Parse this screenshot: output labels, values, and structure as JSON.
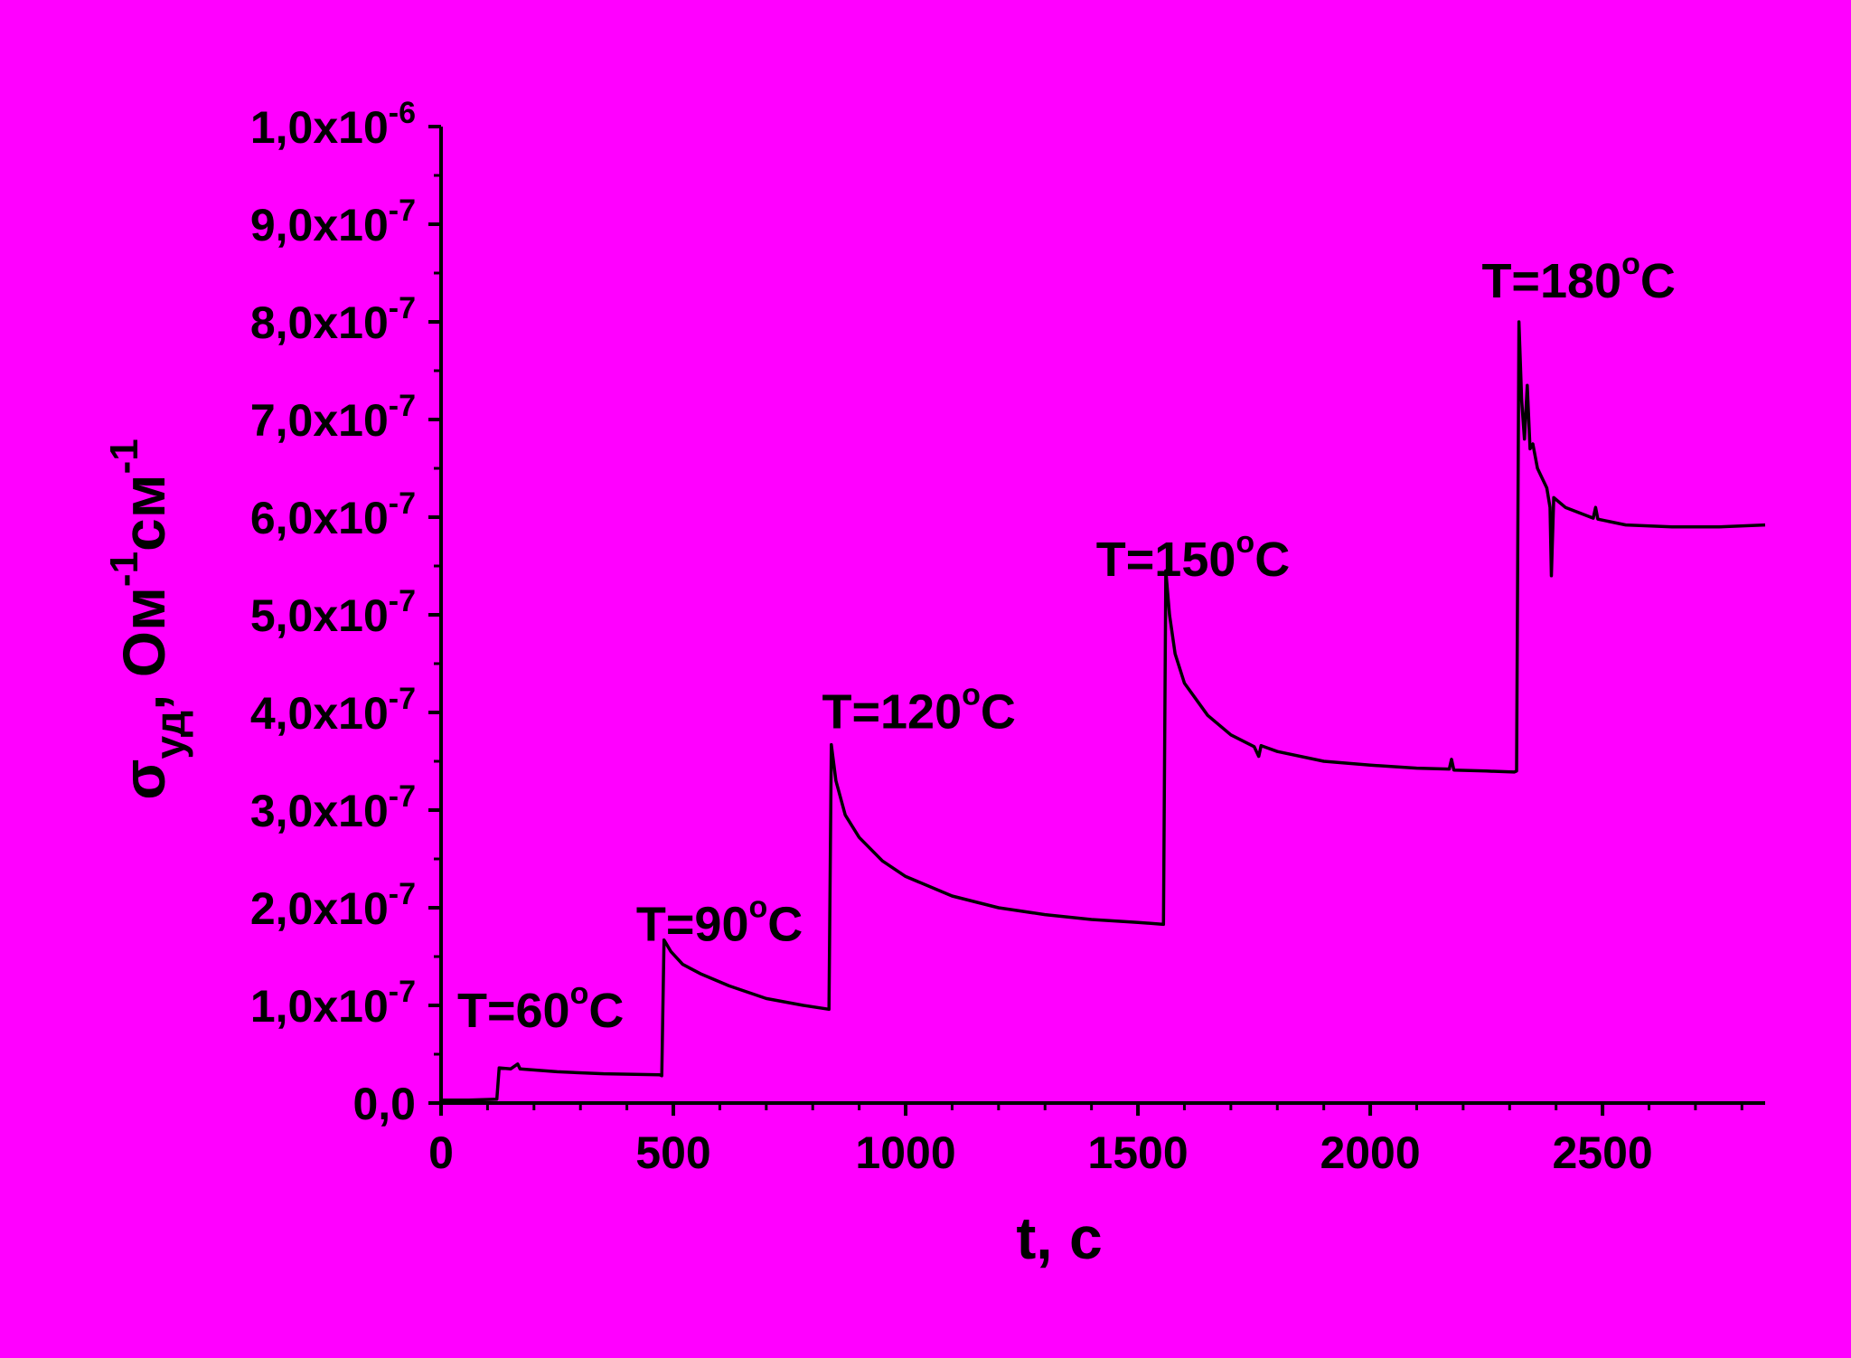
{
  "background": "#FF00FF",
  "chart_data": {
    "type": "line",
    "title": "",
    "xlabel": "t, с",
    "ylabel_parts": {
      "sigma": "σ",
      "sub": "уд",
      "rest1": ", Ом",
      "sup1": "-1",
      "rest2": "см",
      "sup2": "-1"
    },
    "xlim": [
      0,
      2850
    ],
    "ylim": [
      0,
      1e-06
    ],
    "xticks": [
      0,
      500,
      1000,
      1500,
      2000,
      2500
    ],
    "xtick_labels": [
      "0",
      "500",
      "1000",
      "1500",
      "2000",
      "2500"
    ],
    "yticks": [
      {
        "value": 0,
        "mant": "0,0",
        "exp": ""
      },
      {
        "value": 1e-07,
        "mant": "1,0x10",
        "exp": "-7"
      },
      {
        "value": 2e-07,
        "mant": "2,0x10",
        "exp": "-7"
      },
      {
        "value": 3e-07,
        "mant": "3,0x10",
        "exp": "-7"
      },
      {
        "value": 4e-07,
        "mant": "4,0x10",
        "exp": "-7"
      },
      {
        "value": 5e-07,
        "mant": "5,0x10",
        "exp": "-7"
      },
      {
        "value": 6e-07,
        "mant": "6,0x10",
        "exp": "-7"
      },
      {
        "value": 7e-07,
        "mant": "7,0x10",
        "exp": "-7"
      },
      {
        "value": 8e-07,
        "mant": "8,0x10",
        "exp": "-7"
      },
      {
        "value": 9e-07,
        "mant": "9,0x10",
        "exp": "-7"
      },
      {
        "value": 1e-06,
        "mant": "1,0x10",
        "exp": "-6"
      }
    ],
    "grid": false,
    "line_color": "#000000",
    "series": [
      {
        "points": [
          [
            0,
            3e-09
          ],
          [
            60,
            3e-09
          ],
          [
            120,
            4e-09
          ],
          [
            125,
            3.6e-08
          ],
          [
            150,
            3.5e-08
          ],
          [
            165,
            4e-08
          ],
          [
            170,
            3.5e-08
          ],
          [
            250,
            3.2e-08
          ],
          [
            350,
            3e-08
          ],
          [
            470,
            2.9e-08
          ],
          [
            475,
            2.8e-08
          ],
          [
            480,
            1.67e-07
          ],
          [
            495,
            1.55e-07
          ],
          [
            520,
            1.42e-07
          ],
          [
            560,
            1.32e-07
          ],
          [
            620,
            1.2e-07
          ],
          [
            700,
            1.07e-07
          ],
          [
            780,
            1e-07
          ],
          [
            835,
            9.6e-08
          ],
          [
            840,
            3.67e-07
          ],
          [
            850,
            3.3e-07
          ],
          [
            870,
            2.95e-07
          ],
          [
            900,
            2.72e-07
          ],
          [
            950,
            2.48e-07
          ],
          [
            1000,
            2.32e-07
          ],
          [
            1100,
            2.12e-07
          ],
          [
            1200,
            2e-07
          ],
          [
            1300,
            1.93e-07
          ],
          [
            1400,
            1.88e-07
          ],
          [
            1500,
            1.85e-07
          ],
          [
            1555,
            1.83e-07
          ],
          [
            1560,
            5.45e-07
          ],
          [
            1568,
            5e-07
          ],
          [
            1580,
            4.6e-07
          ],
          [
            1600,
            4.3e-07
          ],
          [
            1650,
            3.97e-07
          ],
          [
            1700,
            3.77e-07
          ],
          [
            1750,
            3.65e-07
          ],
          [
            1760,
            3.55e-07
          ],
          [
            1765,
            3.66e-07
          ],
          [
            1800,
            3.6e-07
          ],
          [
            1900,
            3.5e-07
          ],
          [
            2000,
            3.46e-07
          ],
          [
            2100,
            3.43e-07
          ],
          [
            2170,
            3.42e-07
          ],
          [
            2175,
            3.52e-07
          ],
          [
            2180,
            3.41e-07
          ],
          [
            2250,
            3.4e-07
          ],
          [
            2310,
            3.39e-07
          ],
          [
            2315,
            3.4e-07
          ],
          [
            2320,
            8e-07
          ],
          [
            2326,
            7.2e-07
          ],
          [
            2332,
            6.8e-07
          ],
          [
            2338,
            7.35e-07
          ],
          [
            2344,
            6.7e-07
          ],
          [
            2350,
            6.75e-07
          ],
          [
            2360,
            6.5e-07
          ],
          [
            2380,
            6.3e-07
          ],
          [
            2387,
            6.1e-07
          ],
          [
            2390,
            5.4e-07
          ],
          [
            2395,
            6.2e-07
          ],
          [
            2420,
            6.1e-07
          ],
          [
            2480,
            5.99e-07
          ],
          [
            2485,
            6.1e-07
          ],
          [
            2490,
            5.98e-07
          ],
          [
            2550,
            5.92e-07
          ],
          [
            2650,
            5.9e-07
          ],
          [
            2750,
            5.9e-07
          ],
          [
            2850,
            5.92e-07
          ]
        ]
      }
    ],
    "annotations": [
      {
        "text": "T=60",
        "x": 35,
        "y": 7.8e-08
      },
      {
        "text": "T=90",
        "x": 420,
        "y": 1.66e-07
      },
      {
        "text": "T=120",
        "x": 820,
        "y": 3.84e-07
      },
      {
        "text": "T=150",
        "x": 1410,
        "y": 5.4e-07
      },
      {
        "text": "T=180",
        "x": 2240,
        "y": 8.25e-07
      }
    ],
    "annotation_unit": "C",
    "degree_symbol": "o"
  }
}
